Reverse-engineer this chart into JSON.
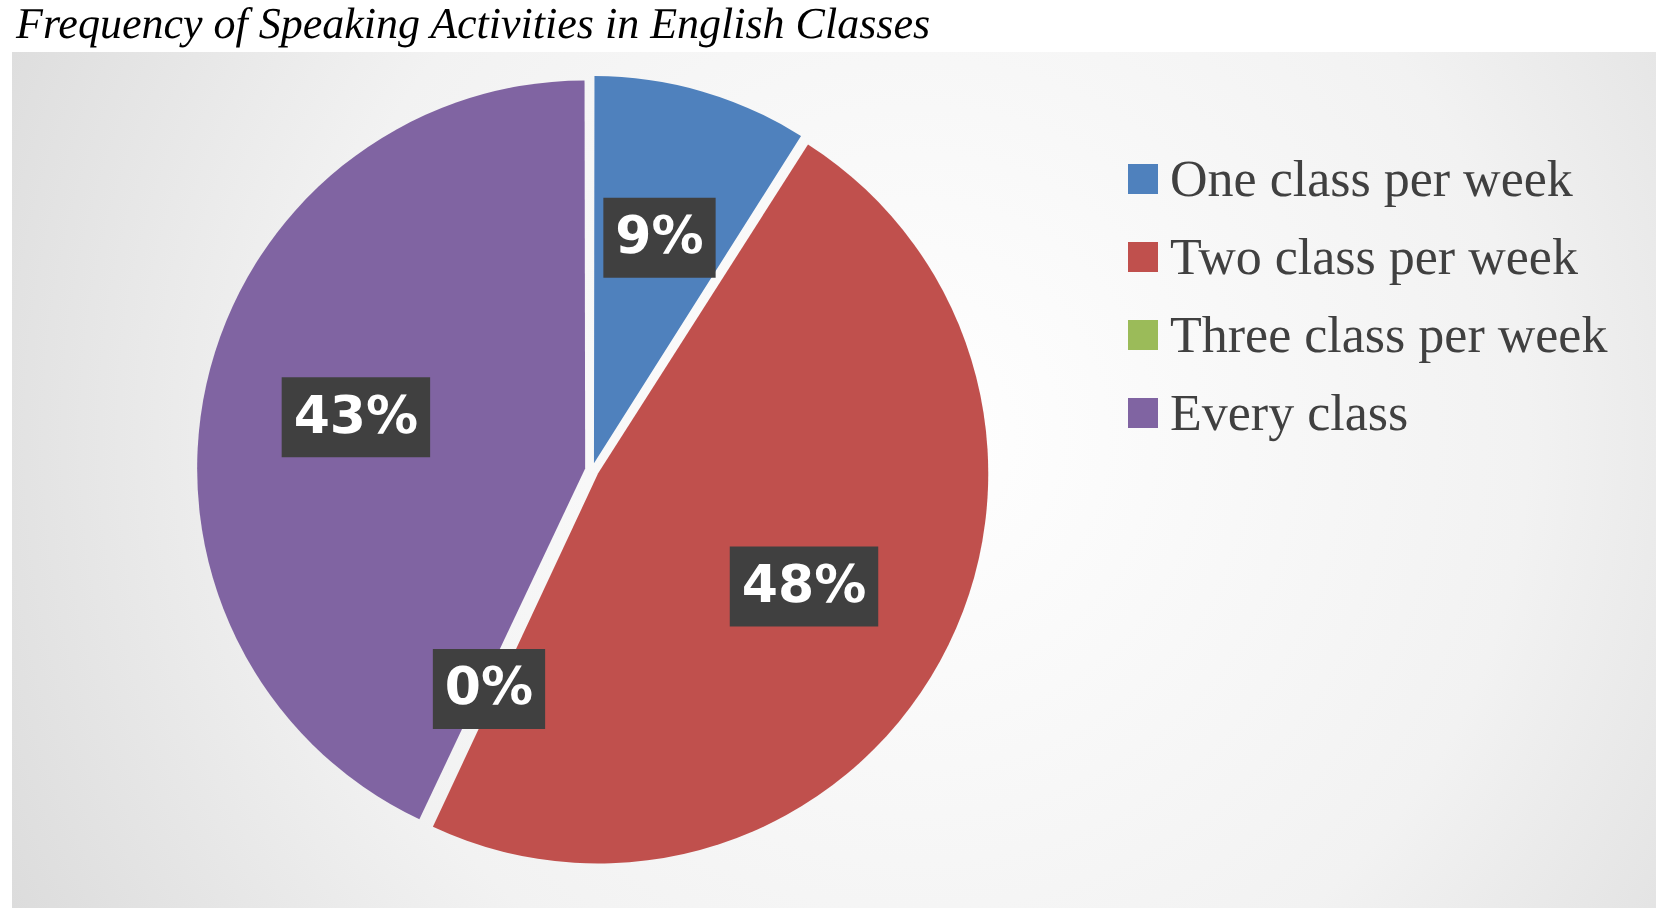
{
  "chart_data": {
    "type": "pie",
    "title": "Frequency of Speaking Activities in English Classes",
    "categories": [
      "One class per week",
      "Two class per week",
      "Three class per week",
      "Every class"
    ],
    "values": [
      9,
      48,
      0,
      43
    ],
    "colors": [
      "#4f81bd",
      "#c0504d",
      "#9bbb59",
      "#8064a2"
    ],
    "value_labels": [
      "9%",
      "48%",
      "0%",
      "43%"
    ],
    "legend": "right"
  }
}
